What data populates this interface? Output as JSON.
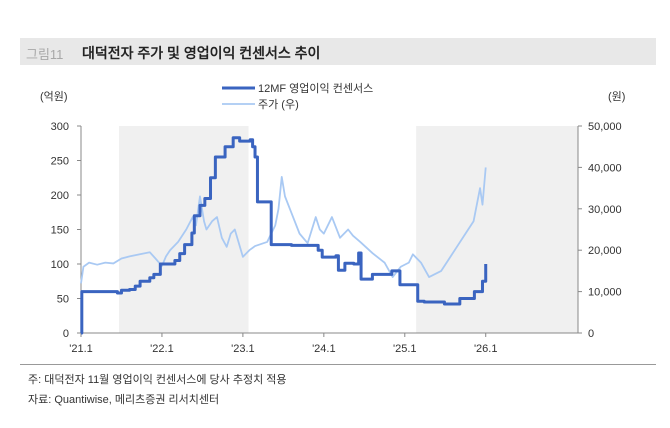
{
  "figure": {
    "number": "그림11",
    "title": "대덕전자 주가 및 영업이익 컨센서스 추이"
  },
  "footnotes": {
    "note": "주: 대덕전자 11월 영업이익 컨센서스에 당사 추정치 적용",
    "source": "자료: Quantiwise, 메리츠증권 리서치센터"
  },
  "chart_data": {
    "type": "line",
    "title": "대덕전자 주가 및 영업이익 컨센서스 추이",
    "xlabel": "",
    "ylabel_left": "(억원)",
    "ylabel_right": "(원)",
    "xlim": [
      2021.0,
      2027.14
    ],
    "ylim_left": [
      0,
      300
    ],
    "ylim_right": [
      0,
      50000
    ],
    "x_ticks": [
      {
        "v": 2021,
        "label": "'21.1"
      },
      {
        "v": 2022,
        "label": "'22.1"
      },
      {
        "v": 2023,
        "label": "'23.1"
      },
      {
        "v": 2024,
        "label": "'24.1"
      },
      {
        "v": 2025,
        "label": "'25.1"
      },
      {
        "v": 2026,
        "label": "'26.1"
      }
    ],
    "y_ticks_left": [
      {
        "v": 0,
        "label": "0"
      },
      {
        "v": 50,
        "label": "50"
      },
      {
        "v": 100,
        "label": "100"
      },
      {
        "v": 150,
        "label": "150"
      },
      {
        "v": 200,
        "label": "200"
      },
      {
        "v": 250,
        "label": "250"
      },
      {
        "v": 300,
        "label": "300"
      }
    ],
    "y_ticks_right": [
      {
        "v": 0,
        "label": "0"
      },
      {
        "v": 10000,
        "label": "10,000"
      },
      {
        "v": 20000,
        "label": "20,000"
      },
      {
        "v": 30000,
        "label": "30,000"
      },
      {
        "v": 40000,
        "label": "40,000"
      },
      {
        "v": 50000,
        "label": "50,000"
      }
    ],
    "grid": false,
    "legend_position": "top-center",
    "shaded_periods": [
      [
        2021.47,
        2023.07
      ],
      [
        2025.14,
        2027.14
      ]
    ],
    "series": [
      {
        "name": "12MF 영업이익 컨센서스",
        "axis": "left",
        "color": "#3a64c0",
        "step": true,
        "x": [
          2021.0,
          2021.01,
          2021.3,
          2021.45,
          2021.5,
          2021.6,
          2021.67,
          2021.73,
          2021.85,
          2021.9,
          2021.98,
          2022.16,
          2022.22,
          2022.28,
          2022.37,
          2022.4,
          2022.47,
          2022.53,
          2022.6,
          2022.66,
          2022.78,
          2022.88,
          2022.96,
          2023.09,
          2023.12,
          2023.15,
          2023.18,
          2023.35,
          2023.6,
          2023.93,
          2023.98,
          2024.15,
          2024.18,
          2024.26,
          2024.37,
          2024.43,
          2024.46,
          2024.6,
          2024.84,
          2024.94,
          2025.1,
          2025.16,
          2025.24,
          2025.49,
          2025.68,
          2025.86,
          2025.96,
          2026.0
        ],
        "values": [
          0,
          60,
          60,
          58,
          62,
          63,
          68,
          75,
          80,
          85,
          100,
          105,
          115,
          128,
          145,
          170,
          185,
          195,
          225,
          255,
          270,
          283,
          278,
          280,
          270,
          255,
          190,
          128,
          127,
          120,
          110,
          112,
          91,
          101,
          100,
          116,
          78,
          85,
          90,
          70,
          70,
          46,
          45,
          42,
          50,
          60,
          75,
          100
        ]
      },
      {
        "name": "주가 (우)",
        "axis": "right",
        "color": "#a9c9f3",
        "step": false,
        "x": [
          2021.0,
          2021.03,
          2021.1,
          2021.2,
          2021.3,
          2021.4,
          2021.5,
          2021.6,
          2021.72,
          2021.85,
          2021.92,
          2022.0,
          2022.05,
          2022.1,
          2022.2,
          2022.3,
          2022.38,
          2022.42,
          2022.47,
          2022.52,
          2022.55,
          2022.62,
          2022.68,
          2022.74,
          2022.8,
          2022.85,
          2022.9,
          2023.0,
          2023.08,
          2023.15,
          2023.3,
          2023.4,
          2023.44,
          2023.48,
          2023.52,
          2023.6,
          2023.7,
          2023.8,
          2023.9,
          2023.95,
          2024.0,
          2024.1,
          2024.2,
          2024.3,
          2024.36,
          2024.45,
          2024.6,
          2024.75,
          2024.85,
          2024.95,
          2025.05,
          2025.1,
          2025.2,
          2025.3,
          2025.45,
          2025.55,
          2025.65,
          2025.75,
          2025.85,
          2025.93,
          2025.96,
          2026.0
        ],
        "values": [
          12000,
          16000,
          17000,
          16500,
          17000,
          16800,
          18000,
          18500,
          19000,
          19500,
          18000,
          16200,
          18500,
          20000,
          22000,
          25000,
          28000,
          26000,
          33000,
          27000,
          25000,
          27000,
          28000,
          23000,
          20800,
          24000,
          25000,
          18400,
          20000,
          21000,
          22000,
          26000,
          30000,
          37700,
          33000,
          29000,
          24000,
          21700,
          28000,
          25000,
          24000,
          28000,
          23000,
          25000,
          23500,
          22000,
          19300,
          17000,
          13500,
          16000,
          17000,
          19000,
          17000,
          13500,
          15000,
          18000,
          21000,
          24000,
          27000,
          35000,
          31000,
          40000
        ]
      }
    ]
  }
}
